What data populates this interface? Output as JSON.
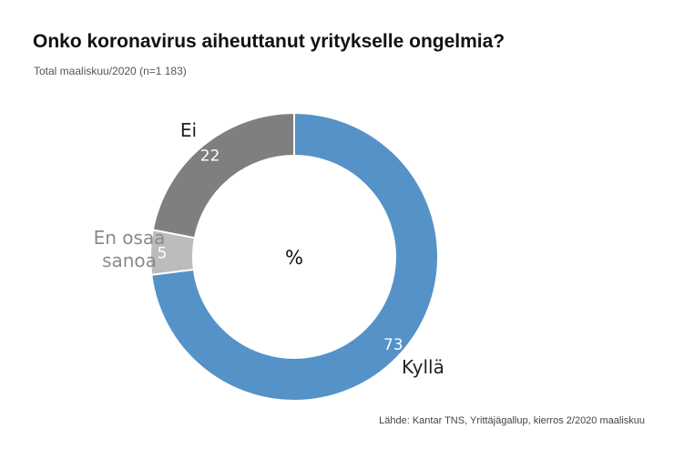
{
  "header": {
    "title": "Onko koronavirus aiheuttanut yritykselle ongelmia?",
    "subtitle": "Total maaliskuu/2020 (n=1 183)"
  },
  "footer": {
    "source": "Lähde: Kantar TNS, Yrittäjägallup, kierros 2/2020 maaliskuu"
  },
  "chart_data": {
    "type": "pie",
    "title": "Onko koronavirus aiheuttanut yritykselle ongelmia?",
    "subtitle": "Total maaliskuu/2020 (n=1 183)",
    "center_label": "%",
    "donut": true,
    "slices": [
      {
        "label": "Kyllä",
        "value": 73,
        "color": "#5592c7",
        "label_color": "#222222"
      },
      {
        "label": "En osaa sanoa",
        "value": 5,
        "color": "#bcbcbc",
        "label_color": "#8a8a8a"
      },
      {
        "label": "Ei",
        "value": 22,
        "color": "#7f7f7f",
        "label_color": "#222222"
      }
    ]
  }
}
